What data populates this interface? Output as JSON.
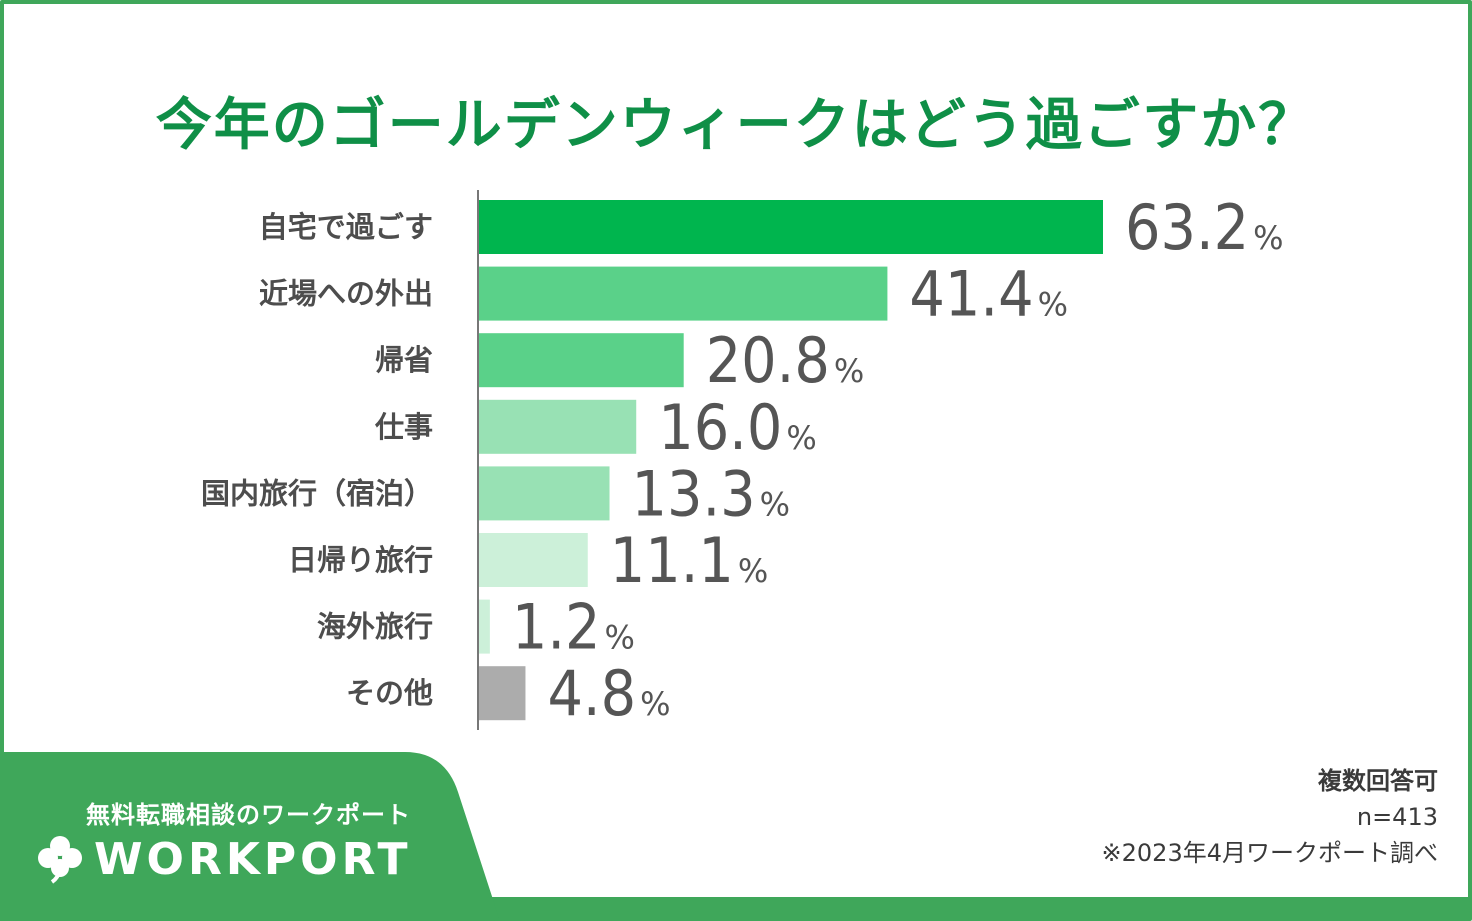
{
  "colors": {
    "frame": "#3fa75a",
    "title": "#0f8f47",
    "brand_panel": "#3fa75a"
  },
  "chart_data": {
    "type": "bar",
    "orientation": "horizontal",
    "title": "今年のゴールデンウィークはどう過ごすか？",
    "categories": [
      "自宅で過ごす",
      "近場への外出",
      "帰省",
      "仕事",
      "国内旅行（宿泊）",
      "日帰り旅行",
      "海外旅行",
      "その他"
    ],
    "values": [
      63.2,
      41.4,
      20.8,
      16.0,
      13.3,
      11.1,
      1.2,
      4.8
    ],
    "value_labels": [
      "63.2",
      "41.4",
      "20.8",
      "16.0",
      "13.3",
      "11.1",
      "1.2",
      "4.8"
    ],
    "unit": "%",
    "bar_colors": [
      "#00b54e",
      "#5ad189",
      "#5ad189",
      "#98e1b4",
      "#98e1b4",
      "#ccf0d9",
      "#ccf0d9",
      "#acacac"
    ],
    "xlim": [
      0,
      70
    ],
    "grid": false,
    "legend": "none"
  },
  "notes": {
    "line1": "複数回答可",
    "line2": "n=413",
    "line3": "※2023年4月ワークポート調べ"
  },
  "brand": {
    "tagline": "無料転職相談のワークポート",
    "name": "WORKPORT",
    "logo_icon": "clover-icon"
  }
}
